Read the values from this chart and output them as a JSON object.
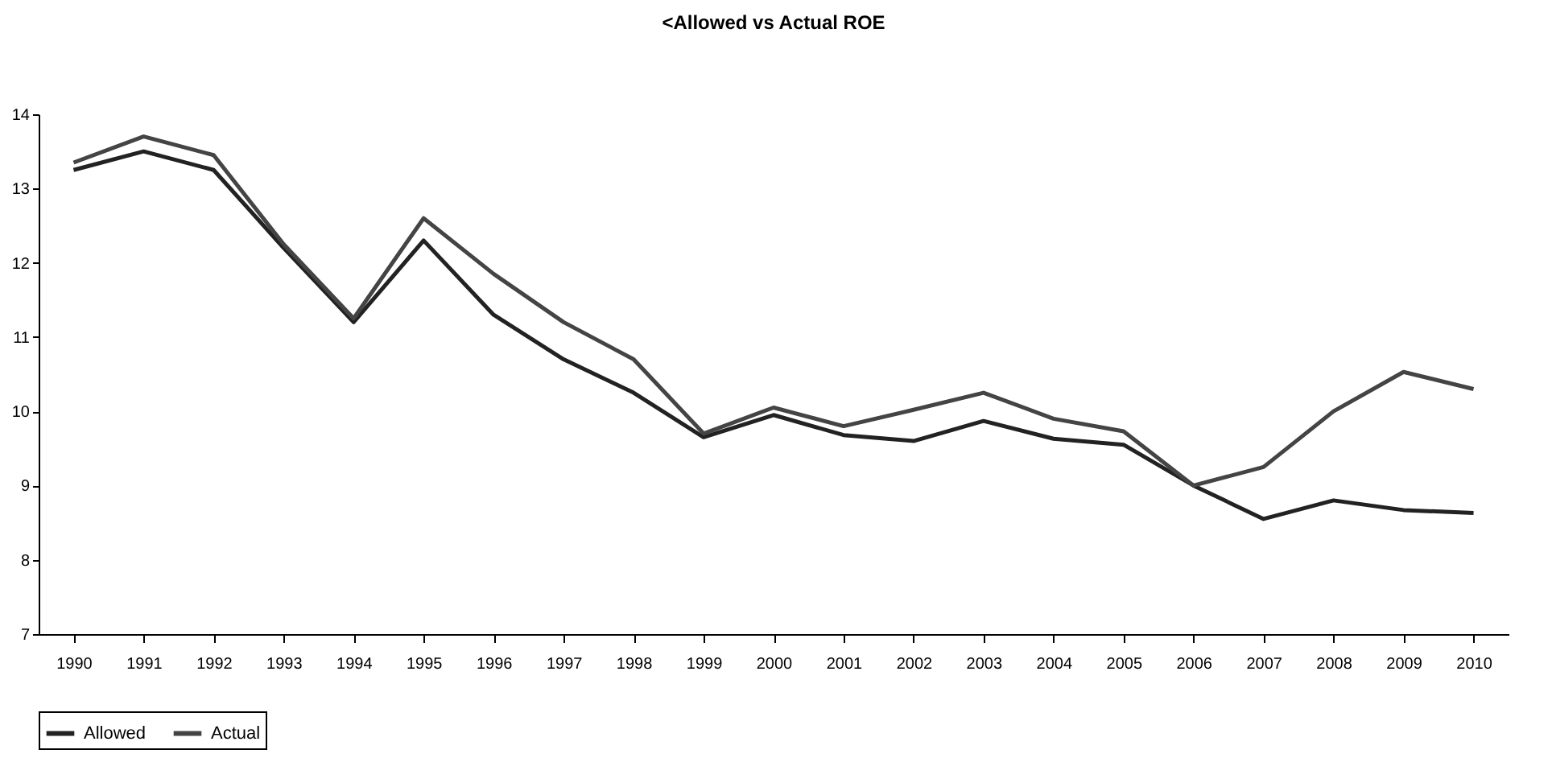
{
  "chart_data": {
    "type": "line",
    "title": "<Allowed vs Actual ROE",
    "categories": [
      "1990",
      "1991",
      "1992",
      "1993",
      "1994",
      "1995",
      "1996",
      "1997",
      "1998",
      "1999",
      "2000",
      "2001",
      "2002",
      "2003",
      "2004",
      "2005",
      "2006",
      "2007",
      "2008",
      "2009",
      "2010"
    ],
    "series": [
      {
        "name": "Allowed",
        "color": "#222222",
        "values": [
          13.25,
          13.5,
          13.25,
          12.2,
          11.2,
          12.3,
          11.3,
          10.7,
          10.25,
          9.65,
          9.95,
          9.68,
          9.6,
          9.87,
          9.63,
          9.55,
          9.0,
          8.55,
          8.8,
          8.67,
          8.63
        ]
      },
      {
        "name": "Actual",
        "color": "#444444",
        "values": [
          13.35,
          13.7,
          13.45,
          12.25,
          11.25,
          12.6,
          11.85,
          11.2,
          10.7,
          9.7,
          10.05,
          9.8,
          10.02,
          10.25,
          9.9,
          9.73,
          9.0,
          9.25,
          10.0,
          10.53,
          10.3
        ]
      }
    ],
    "ylim": [
      7,
      14
    ],
    "yticks": [
      7,
      8,
      9,
      10,
      11,
      12,
      13,
      14
    ],
    "grid": false,
    "legend": "bottom",
    "line_style": "solid"
  }
}
